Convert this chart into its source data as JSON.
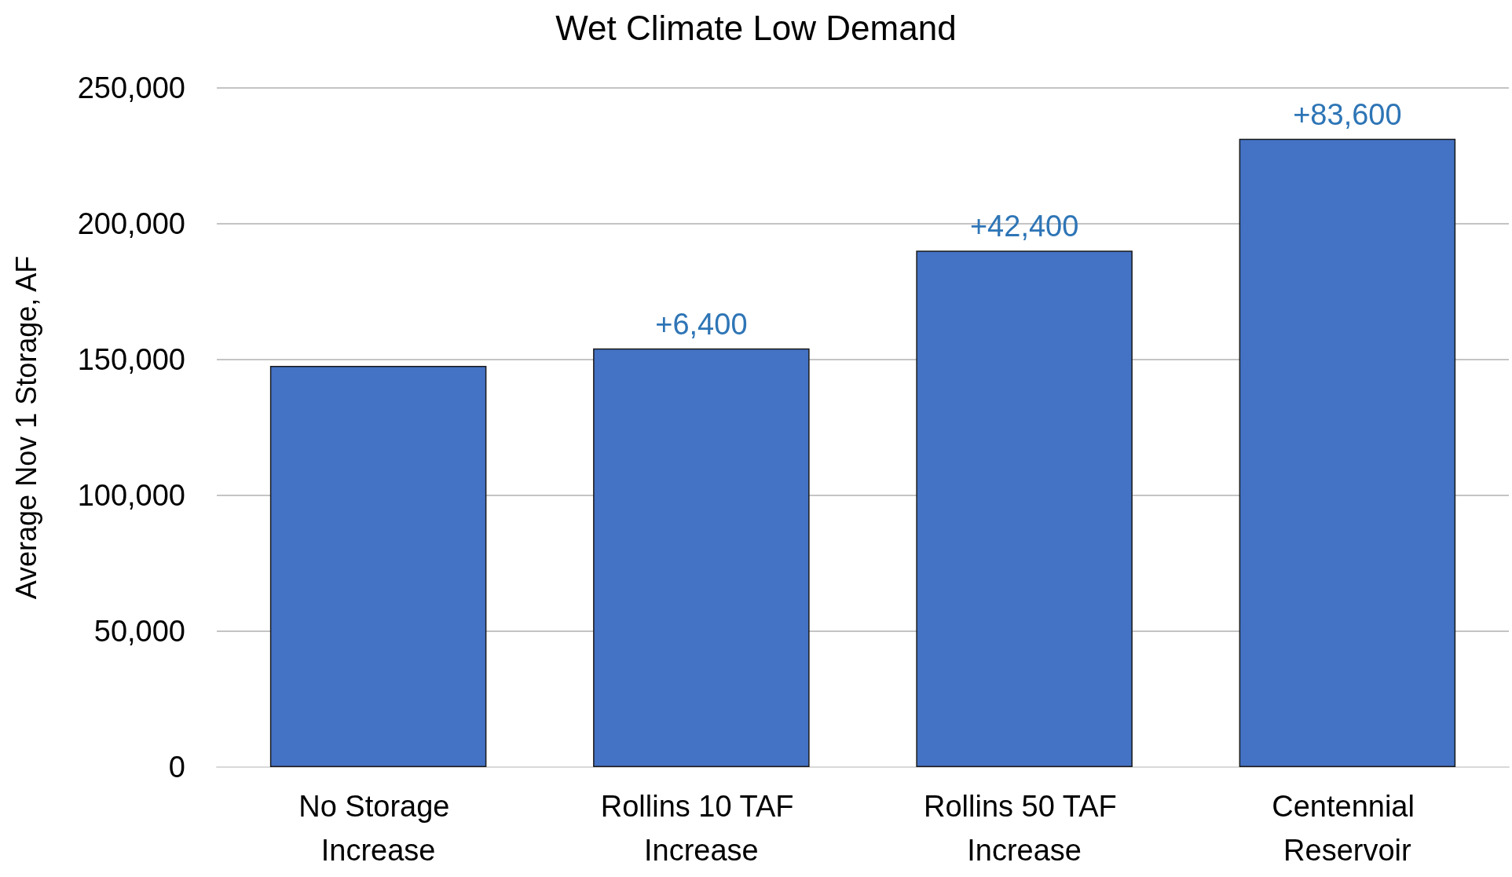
{
  "chart_data": {
    "type": "bar",
    "title": "Wet Climate Low Demand",
    "ylabel": "Average Nov 1 Storage, AF",
    "categories": [
      "No Storage Increase",
      "Rollins 10 TAF Increase",
      "Rollins 50 TAF Increase",
      "Centennial Reservoir"
    ],
    "values": [
      147700,
      154100,
      190100,
      231300
    ],
    "annotations": [
      {
        "text": "+6,400",
        "x": "Rollins 10 TAF Increase",
        "y": 154100
      },
      {
        "text": "+42,400",
        "x": "Rollins 50 TAF Increase",
        "y": 190100
      },
      {
        "text": "+83,600",
        "x": "Centennial Reservoir",
        "y": 231300
      }
    ],
    "color": "#4472c4",
    "ylim": [
      0,
      250000
    ],
    "yticks": [
      0,
      {
        "value": 50000,
        "label": "50,000"
      },
      {
        "value": 100000,
        "label": "100,000"
      },
      {
        "value": 150000,
        "label": "150,000"
      },
      {
        "value": 200000,
        "label": "200,000"
      },
      {
        "value": 250000,
        "label": "250,000"
      }
    ],
    "grid": "y"
  }
}
